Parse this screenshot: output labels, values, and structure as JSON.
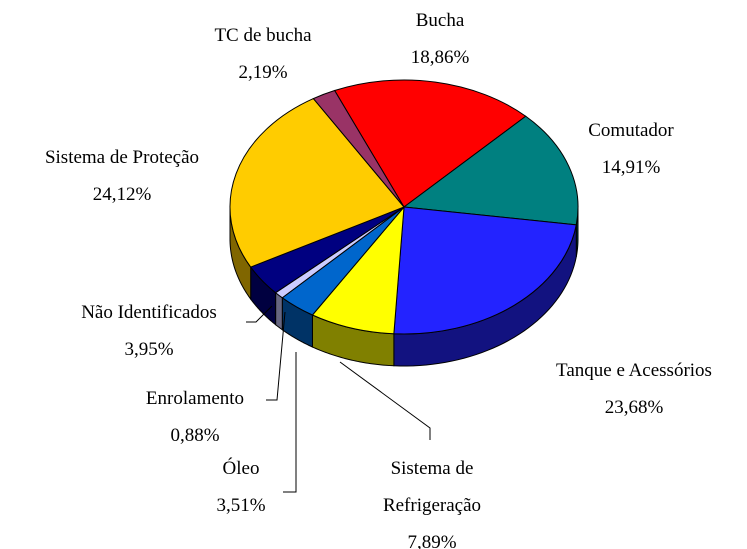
{
  "chart_data": {
    "type": "pie3d",
    "categories": [
      "Bucha",
      "Comutador",
      "Tanque e Acessórios",
      "Sistema de Refrigeração",
      "Óleo",
      "Enrolamento",
      "Não Identificados",
      "Sistema de Proteção",
      "TC de bucha"
    ],
    "values": [
      18.86,
      14.91,
      23.68,
      7.89,
      3.51,
      0.88,
      3.95,
      24.12,
      2.19
    ],
    "value_labels": [
      "18,86%",
      "14,91%",
      "23,68%",
      "7,89%",
      "3,51%",
      "0,88%",
      "3,95%",
      "24,12%",
      "2,19%"
    ],
    "colors": [
      "#ff0000",
      "#008080",
      "#2323ff",
      "#ffff00",
      "#0066cc",
      "#ccccff",
      "#000080",
      "#ffcc00",
      "#993366"
    ]
  }
}
